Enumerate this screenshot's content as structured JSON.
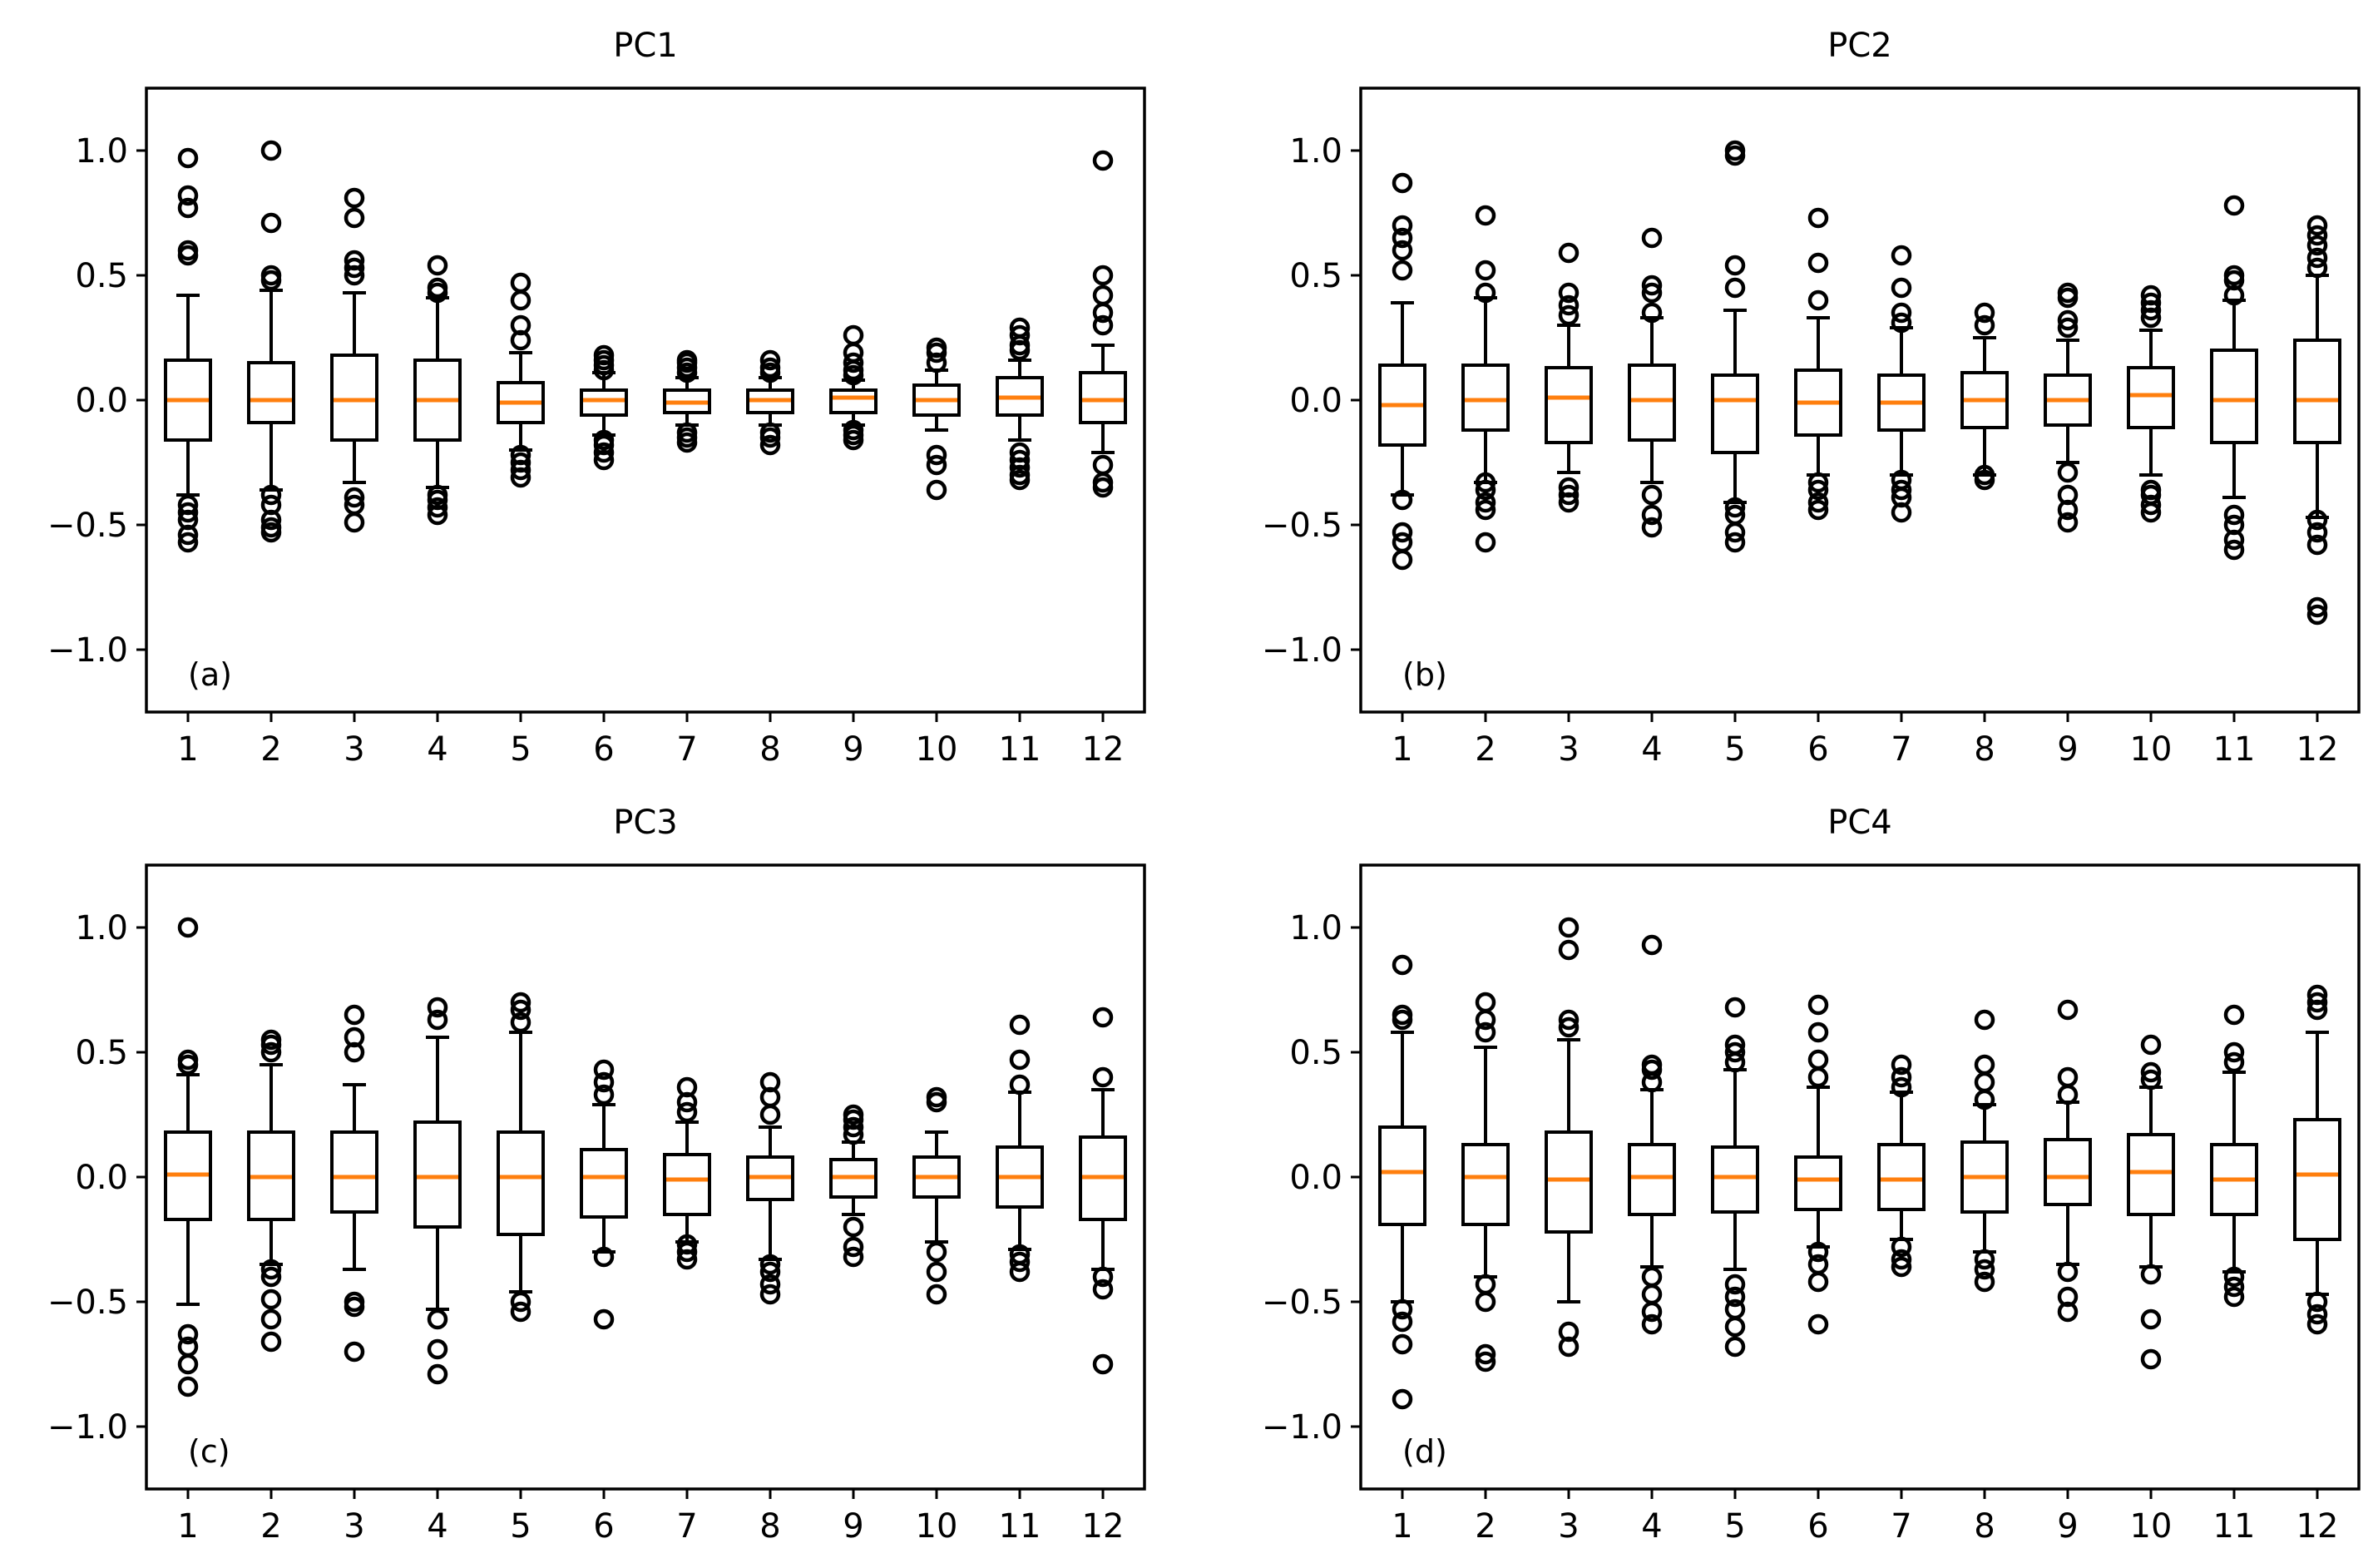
{
  "colors": {
    "box": "#000000",
    "median": "#ff7f0e",
    "flier": "#000000",
    "background": "#ffffff"
  },
  "chart_data": [
    {
      "type": "boxplot",
      "title": "PC1",
      "panel_label": "(a)",
      "xlabel": "",
      "ylabel": "",
      "categories": [
        "1",
        "2",
        "3",
        "4",
        "5",
        "6",
        "7",
        "8",
        "9",
        "10",
        "11",
        "12"
      ],
      "ylim": [
        -1.25,
        1.25
      ],
      "yticks": [
        1.0,
        0.5,
        0.0,
        -0.5,
        -1.0
      ],
      "ytick_labels": [
        "1.0",
        "0.5",
        "0.0",
        "−0.5",
        "−1.0"
      ],
      "grid": false,
      "boxes": [
        {
          "whislo": -0.38,
          "q1": -0.16,
          "med": 0.0,
          "q3": 0.16,
          "whishi": 0.42,
          "fliers": [
            -0.57,
            -0.54,
            -0.48,
            -0.45,
            -0.42,
            0.58,
            0.6,
            0.77,
            0.82,
            0.97
          ]
        },
        {
          "whislo": -0.36,
          "q1": -0.09,
          "med": 0.0,
          "q3": 0.15,
          "whishi": 0.44,
          "fliers": [
            -0.53,
            -0.51,
            -0.48,
            -0.42,
            -0.38,
            0.48,
            0.5,
            0.71,
            1.0
          ]
        },
        {
          "whislo": -0.33,
          "q1": -0.16,
          "med": 0.0,
          "q3": 0.18,
          "whishi": 0.43,
          "fliers": [
            -0.49,
            -0.42,
            -0.39,
            0.5,
            0.53,
            0.56,
            0.73,
            0.81
          ]
        },
        {
          "whislo": -0.35,
          "q1": -0.16,
          "med": 0.0,
          "q3": 0.16,
          "whishi": 0.41,
          "fliers": [
            -0.46,
            -0.43,
            -0.4,
            -0.38,
            0.43,
            0.45,
            0.54
          ]
        },
        {
          "whislo": -0.2,
          "q1": -0.09,
          "med": -0.01,
          "q3": 0.07,
          "whishi": 0.19,
          "fliers": [
            -0.31,
            -0.28,
            -0.25,
            -0.22,
            0.24,
            0.3,
            0.4,
            0.47
          ]
        },
        {
          "whislo": -0.14,
          "q1": -0.06,
          "med": 0.0,
          "q3": 0.04,
          "whishi": 0.11,
          "fliers": [
            -0.24,
            -0.21,
            -0.18,
            -0.16,
            0.12,
            0.14,
            0.16,
            0.18
          ]
        },
        {
          "whislo": -0.1,
          "q1": -0.05,
          "med": -0.01,
          "q3": 0.04,
          "whishi": 0.09,
          "fliers": [
            -0.17,
            -0.15,
            -0.13,
            0.11,
            0.13,
            0.15,
            0.16
          ]
        },
        {
          "whislo": -0.1,
          "q1": -0.05,
          "med": 0.0,
          "q3": 0.04,
          "whishi": 0.09,
          "fliers": [
            -0.18,
            -0.15,
            -0.13,
            0.11,
            0.13,
            0.16
          ]
        },
        {
          "whislo": -0.1,
          "q1": -0.05,
          "med": 0.01,
          "q3": 0.04,
          "whishi": 0.08,
          "fliers": [
            -0.16,
            -0.14,
            -0.12,
            0.1,
            0.12,
            0.15,
            0.19,
            0.26
          ]
        },
        {
          "whislo": -0.12,
          "q1": -0.06,
          "med": 0.0,
          "q3": 0.06,
          "whishi": 0.12,
          "fliers": [
            -0.36,
            -0.26,
            -0.22,
            0.15,
            0.19,
            0.21
          ]
        },
        {
          "whislo": -0.16,
          "q1": -0.06,
          "med": 0.01,
          "q3": 0.09,
          "whishi": 0.16,
          "fliers": [
            -0.32,
            -0.3,
            -0.27,
            -0.24,
            -0.21,
            0.2,
            0.22,
            0.26,
            0.29
          ]
        },
        {
          "whislo": -0.21,
          "q1": -0.09,
          "med": 0.0,
          "q3": 0.11,
          "whishi": 0.22,
          "fliers": [
            -0.35,
            -0.33,
            -0.26,
            0.3,
            0.35,
            0.42,
            0.5,
            0.96
          ]
        }
      ]
    },
    {
      "type": "boxplot",
      "title": "PC2",
      "panel_label": "(b)",
      "xlabel": "",
      "ylabel": "",
      "categories": [
        "1",
        "2",
        "3",
        "4",
        "5",
        "6",
        "7",
        "8",
        "9",
        "10",
        "11",
        "12"
      ],
      "ylim": [
        -1.25,
        1.25
      ],
      "yticks": [
        1.0,
        0.5,
        0.0,
        -0.5,
        -1.0
      ],
      "ytick_labels": [
        "1.0",
        "0.5",
        "0.0",
        "−0.5",
        "−1.0"
      ],
      "grid": false,
      "boxes": [
        {
          "whislo": -0.38,
          "q1": -0.18,
          "med": -0.02,
          "q3": 0.14,
          "whishi": 0.39,
          "fliers": [
            -0.64,
            -0.57,
            -0.53,
            -0.4,
            0.52,
            0.6,
            0.65,
            0.7,
            0.87
          ]
        },
        {
          "whislo": -0.33,
          "q1": -0.12,
          "med": 0.0,
          "q3": 0.14,
          "whishi": 0.41,
          "fliers": [
            -0.57,
            -0.44,
            -0.41,
            -0.36,
            -0.33,
            0.43,
            0.52,
            0.74
          ]
        },
        {
          "whislo": -0.29,
          "q1": -0.17,
          "med": 0.01,
          "q3": 0.13,
          "whishi": 0.3,
          "fliers": [
            -0.41,
            -0.38,
            -0.35,
            0.34,
            0.38,
            0.43,
            0.59
          ]
        },
        {
          "whislo": -0.33,
          "q1": -0.16,
          "med": 0.0,
          "q3": 0.14,
          "whishi": 0.33,
          "fliers": [
            -0.51,
            -0.46,
            -0.38,
            0.35,
            0.43,
            0.46,
            0.65
          ]
        },
        {
          "whislo": -0.41,
          "q1": -0.21,
          "med": 0.0,
          "q3": 0.1,
          "whishi": 0.36,
          "fliers": [
            -0.57,
            -0.53,
            -0.46,
            -0.43,
            0.45,
            0.54,
            0.98,
            1.0
          ]
        },
        {
          "whislo": -0.3,
          "q1": -0.14,
          "med": -0.01,
          "q3": 0.12,
          "whishi": 0.33,
          "fliers": [
            -0.44,
            -0.41,
            -0.36,
            -0.33,
            0.4,
            0.55,
            0.73
          ]
        },
        {
          "whislo": -0.3,
          "q1": -0.12,
          "med": -0.01,
          "q3": 0.1,
          "whishi": 0.29,
          "fliers": [
            -0.45,
            -0.39,
            -0.36,
            -0.32,
            0.31,
            0.35,
            0.45,
            0.58
          ]
        },
        {
          "whislo": -0.3,
          "q1": -0.11,
          "med": 0.0,
          "q3": 0.11,
          "whishi": 0.25,
          "fliers": [
            -0.32,
            -0.3,
            0.3,
            0.35
          ]
        },
        {
          "whislo": -0.25,
          "q1": -0.1,
          "med": 0.0,
          "q3": 0.1,
          "whishi": 0.24,
          "fliers": [
            -0.49,
            -0.44,
            -0.38,
            -0.29,
            0.29,
            0.32,
            0.41,
            0.43
          ]
        },
        {
          "whislo": -0.3,
          "q1": -0.11,
          "med": 0.02,
          "q3": 0.13,
          "whishi": 0.28,
          "fliers": [
            -0.45,
            -0.42,
            -0.38,
            -0.36,
            0.33,
            0.36,
            0.39,
            0.42
          ]
        },
        {
          "whislo": -0.39,
          "q1": -0.17,
          "med": 0.0,
          "q3": 0.2,
          "whishi": 0.4,
          "fliers": [
            -0.6,
            -0.56,
            -0.5,
            -0.46,
            0.42,
            0.48,
            0.5,
            0.78
          ]
        },
        {
          "whislo": -0.47,
          "q1": -0.17,
          "med": 0.0,
          "q3": 0.24,
          "whishi": 0.5,
          "fliers": [
            -0.86,
            -0.83,
            -0.58,
            -0.53,
            -0.48,
            0.53,
            0.57,
            0.62,
            0.66,
            0.7
          ]
        }
      ]
    },
    {
      "type": "boxplot",
      "title": "PC3",
      "panel_label": "(c)",
      "xlabel": "",
      "ylabel": "",
      "categories": [
        "1",
        "2",
        "3",
        "4",
        "5",
        "6",
        "7",
        "8",
        "9",
        "10",
        "11",
        "12"
      ],
      "ylim": [
        -1.25,
        1.25
      ],
      "yticks": [
        1.0,
        0.5,
        0.0,
        -0.5,
        -1.0
      ],
      "ytick_labels": [
        "1.0",
        "0.5",
        "0.0",
        "−0.5",
        "−1.0"
      ],
      "grid": false,
      "boxes": [
        {
          "whislo": -0.51,
          "q1": -0.17,
          "med": 0.01,
          "q3": 0.18,
          "whishi": 0.41,
          "fliers": [
            -0.84,
            -0.75,
            -0.68,
            -0.63,
            0.45,
            0.47,
            1.0
          ]
        },
        {
          "whislo": -0.35,
          "q1": -0.17,
          "med": 0.0,
          "q3": 0.18,
          "whishi": 0.45,
          "fliers": [
            -0.66,
            -0.57,
            -0.49,
            -0.4,
            -0.37,
            0.5,
            0.53,
            0.55
          ]
        },
        {
          "whislo": -0.37,
          "q1": -0.14,
          "med": 0.0,
          "q3": 0.18,
          "whishi": 0.37,
          "fliers": [
            -0.7,
            -0.52,
            -0.5,
            0.5,
            0.56,
            0.65
          ]
        },
        {
          "whislo": -0.53,
          "q1": -0.2,
          "med": 0.0,
          "q3": 0.22,
          "whishi": 0.56,
          "fliers": [
            -0.79,
            -0.69,
            -0.57,
            0.63,
            0.68
          ]
        },
        {
          "whislo": -0.46,
          "q1": -0.23,
          "med": 0.0,
          "q3": 0.18,
          "whishi": 0.58,
          "fliers": [
            -0.54,
            -0.5,
            0.62,
            0.67,
            0.7
          ]
        },
        {
          "whislo": -0.3,
          "q1": -0.16,
          "med": 0.0,
          "q3": 0.11,
          "whishi": 0.29,
          "fliers": [
            -0.57,
            -0.32,
            0.33,
            0.38,
            0.43
          ]
        },
        {
          "whislo": -0.26,
          "q1": -0.15,
          "med": -0.01,
          "q3": 0.09,
          "whishi": 0.22,
          "fliers": [
            -0.33,
            -0.3,
            -0.27,
            0.26,
            0.3,
            0.36
          ]
        },
        {
          "whislo": -0.33,
          "q1": -0.09,
          "med": 0.0,
          "q3": 0.08,
          "whishi": 0.2,
          "fliers": [
            -0.47,
            -0.43,
            -0.38,
            -0.35,
            0.25,
            0.32,
            0.38
          ]
        },
        {
          "whislo": -0.15,
          "q1": -0.08,
          "med": 0.0,
          "q3": 0.07,
          "whishi": 0.14,
          "fliers": [
            -0.32,
            -0.28,
            -0.2,
            0.17,
            0.2,
            0.23,
            0.25
          ]
        },
        {
          "whislo": -0.26,
          "q1": -0.08,
          "med": 0.0,
          "q3": 0.08,
          "whishi": 0.18,
          "fliers": [
            -0.47,
            -0.38,
            -0.3,
            0.3,
            0.32
          ]
        },
        {
          "whislo": -0.29,
          "q1": -0.12,
          "med": 0.0,
          "q3": 0.12,
          "whishi": 0.34,
          "fliers": [
            -0.38,
            -0.34,
            -0.31,
            0.37,
            0.47,
            0.61
          ]
        },
        {
          "whislo": -0.37,
          "q1": -0.17,
          "med": 0.0,
          "q3": 0.16,
          "whishi": 0.35,
          "fliers": [
            -0.75,
            -0.45,
            -0.4,
            0.4,
            0.64
          ]
        }
      ]
    },
    {
      "type": "boxplot",
      "title": "PC4",
      "panel_label": "(d)",
      "xlabel": "",
      "ylabel": "",
      "categories": [
        "1",
        "2",
        "3",
        "4",
        "5",
        "6",
        "7",
        "8",
        "9",
        "10",
        "11",
        "12"
      ],
      "ylim": [
        -1.25,
        1.25
      ],
      "yticks": [
        1.0,
        0.5,
        0.0,
        -0.5,
        -1.0
      ],
      "ytick_labels": [
        "1.0",
        "0.5",
        "0.0",
        "−0.5",
        "−1.0"
      ],
      "grid": false,
      "boxes": [
        {
          "whislo": -0.5,
          "q1": -0.19,
          "med": 0.02,
          "q3": 0.2,
          "whishi": 0.58,
          "fliers": [
            -0.89,
            -0.67,
            -0.58,
            -0.53,
            0.63,
            0.65,
            0.85
          ]
        },
        {
          "whislo": -0.4,
          "q1": -0.19,
          "med": 0.0,
          "q3": 0.13,
          "whishi": 0.52,
          "fliers": [
            -0.74,
            -0.71,
            -0.5,
            -0.43,
            0.58,
            0.63,
            0.7
          ]
        },
        {
          "whislo": -0.5,
          "q1": -0.22,
          "med": -0.01,
          "q3": 0.18,
          "whishi": 0.55,
          "fliers": [
            -0.68,
            -0.62,
            0.6,
            0.63,
            0.91,
            1.0
          ]
        },
        {
          "whislo": -0.36,
          "q1": -0.15,
          "med": 0.0,
          "q3": 0.13,
          "whishi": 0.35,
          "fliers": [
            -0.59,
            -0.54,
            -0.47,
            -0.4,
            0.38,
            0.43,
            0.45,
            0.93
          ]
        },
        {
          "whislo": -0.37,
          "q1": -0.14,
          "med": 0.0,
          "q3": 0.12,
          "whishi": 0.43,
          "fliers": [
            -0.68,
            -0.6,
            -0.53,
            -0.48,
            -0.43,
            0.46,
            0.5,
            0.53,
            0.68
          ]
        },
        {
          "whislo": -0.28,
          "q1": -0.13,
          "med": -0.01,
          "q3": 0.08,
          "whishi": 0.36,
          "fliers": [
            -0.59,
            -0.42,
            -0.35,
            -0.3,
            0.4,
            0.47,
            0.58,
            0.69
          ]
        },
        {
          "whislo": -0.25,
          "q1": -0.13,
          "med": -0.01,
          "q3": 0.13,
          "whishi": 0.34,
          "fliers": [
            -0.36,
            -0.33,
            -0.28,
            0.36,
            0.4,
            0.45
          ]
        },
        {
          "whislo": -0.3,
          "q1": -0.14,
          "med": 0.0,
          "q3": 0.14,
          "whishi": 0.29,
          "fliers": [
            -0.42,
            -0.37,
            -0.33,
            0.31,
            0.38,
            0.45,
            0.63
          ]
        },
        {
          "whislo": -0.35,
          "q1": -0.11,
          "med": 0.0,
          "q3": 0.15,
          "whishi": 0.3,
          "fliers": [
            -0.54,
            -0.48,
            -0.38,
            0.33,
            0.4,
            0.67
          ]
        },
        {
          "whislo": -0.36,
          "q1": -0.15,
          "med": 0.02,
          "q3": 0.17,
          "whishi": 0.36,
          "fliers": [
            -0.73,
            -0.57,
            -0.39,
            0.39,
            0.42,
            0.53
          ]
        },
        {
          "whislo": -0.38,
          "q1": -0.15,
          "med": -0.01,
          "q3": 0.13,
          "whishi": 0.42,
          "fliers": [
            -0.48,
            -0.44,
            -0.4,
            0.46,
            0.5,
            0.65
          ]
        },
        {
          "whislo": -0.47,
          "q1": -0.25,
          "med": 0.01,
          "q3": 0.23,
          "whishi": 0.58,
          "fliers": [
            -0.59,
            -0.55,
            -0.5,
            0.67,
            0.7,
            0.73
          ]
        }
      ]
    }
  ]
}
